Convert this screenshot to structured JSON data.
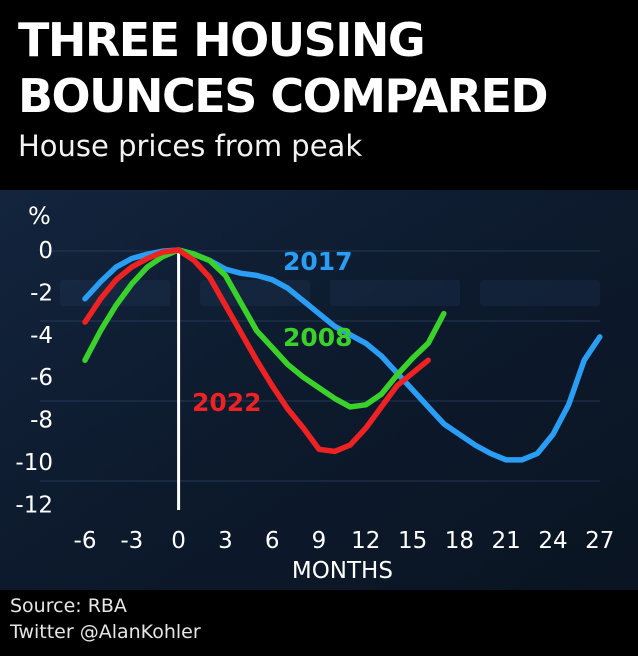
{
  "header": {
    "title_line1": "THREE HOUSING",
    "title_line2": "BOUNCES COMPARED",
    "subtitle": "House prices from peak"
  },
  "footer": {
    "source": "Source: RBA",
    "credit": "Twitter @AlanKohler"
  },
  "colors": {
    "series_2017": "#2a9df4",
    "series_2008": "#3ad12a",
    "series_2022": "#ee2222",
    "text": "#ffffff"
  },
  "chart_data": {
    "type": "line",
    "title": "THREE HOUSING BOUNCES COMPARED",
    "subtitle": "House prices from peak",
    "xlabel": "MONTHS",
    "ylabel": "%",
    "xlim": [
      -6,
      27
    ],
    "ylim": [
      -12,
      0
    ],
    "xticks": [
      -6,
      -3,
      0,
      3,
      6,
      9,
      12,
      15,
      18,
      21,
      24,
      27
    ],
    "yticks": [
      0,
      -2,
      -4,
      -6,
      -8,
      -10,
      -12
    ],
    "reference_line_x": 0,
    "grid": false,
    "legend": "inline labels",
    "series": [
      {
        "name": "2017",
        "x": [
          -6,
          -5,
          -4,
          -3,
          -2,
          -1,
          0,
          1,
          2,
          3,
          4,
          5,
          6,
          7,
          8,
          9,
          10,
          11,
          12,
          13,
          14,
          15,
          16,
          17,
          18,
          19,
          20,
          21,
          22,
          23,
          24,
          25,
          26,
          27
        ],
        "y": [
          -2.3,
          -1.5,
          -0.8,
          -0.4,
          -0.2,
          -0.05,
          0,
          -0.2,
          -0.5,
          -0.9,
          -1.1,
          -1.2,
          -1.4,
          -1.8,
          -2.4,
          -3.0,
          -3.6,
          -4.0,
          -4.4,
          -5.0,
          -5.8,
          -6.6,
          -7.4,
          -8.2,
          -8.7,
          -9.2,
          -9.6,
          -9.9,
          -9.9,
          -9.6,
          -8.7,
          -7.3,
          -5.2,
          -4.1
        ]
      },
      {
        "name": "2008",
        "x": [
          -6,
          -5,
          -4,
          -3,
          -2,
          -1,
          0,
          1,
          2,
          3,
          4,
          5,
          6,
          7,
          8,
          9,
          10,
          11,
          12,
          13,
          14,
          15,
          16,
          17
        ],
        "y": [
          -5.2,
          -3.8,
          -2.6,
          -1.6,
          -0.8,
          -0.3,
          0,
          -0.2,
          -0.5,
          -1.2,
          -2.5,
          -3.8,
          -4.6,
          -5.4,
          -6.0,
          -6.5,
          -7.0,
          -7.4,
          -7.3,
          -6.8,
          -5.9,
          -5.1,
          -4.4,
          -3.0
        ]
      },
      {
        "name": "2022",
        "x": [
          -6,
          -5,
          -4,
          -3,
          -2,
          -1,
          0,
          1,
          2,
          3,
          4,
          5,
          6,
          7,
          8,
          9,
          10,
          11,
          12,
          13,
          14,
          15,
          16
        ],
        "y": [
          -3.4,
          -2.3,
          -1.4,
          -0.8,
          -0.4,
          -0.1,
          0,
          -0.5,
          -1.3,
          -2.6,
          -3.9,
          -5.2,
          -6.4,
          -7.5,
          -8.4,
          -9.4,
          -9.5,
          -9.2,
          -8.4,
          -7.4,
          -6.4,
          -5.8,
          -5.2
        ]
      }
    ],
    "annotations": [
      {
        "text": "2017",
        "series": "2017"
      },
      {
        "text": "2008",
        "series": "2008"
      },
      {
        "text": "2022",
        "series": "2022"
      }
    ]
  }
}
